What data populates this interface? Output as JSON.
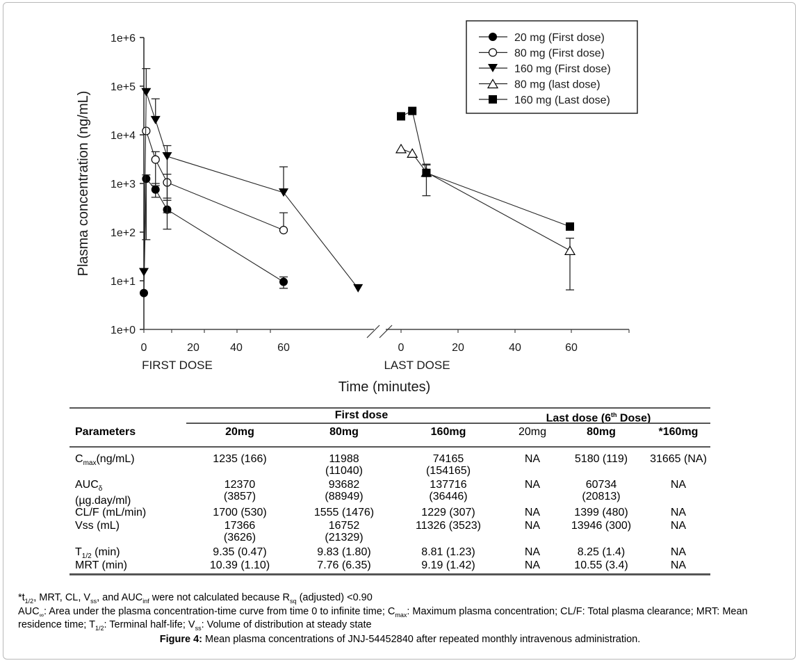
{
  "chart_data": {
    "type": "line",
    "yscale": "log",
    "ylabel": "Plasma concentration (ng/mL)",
    "xlabel": "Time (minutes)",
    "ylim": [
      1,
      1000000
    ],
    "yticks": [
      "1e+0",
      "1e+1",
      "1e+2",
      "1e+3",
      "1e+4",
      "1e+5",
      "1e+6"
    ],
    "grid": false,
    "axis_break": true,
    "segments": [
      {
        "label": "FIRST DOSE",
        "xlim": [
          0,
          85
        ],
        "xticks": [
          "0",
          "20",
          "40",
          "60"
        ]
      },
      {
        "label": "LAST DOSE",
        "xlim": [
          0,
          80
        ],
        "xticks": [
          "0",
          "20",
          "40",
          "60"
        ]
      }
    ],
    "legend_position": "top-right",
    "series": [
      {
        "name": "20 mg (First dose)",
        "marker": "filled-circle",
        "segment": "first",
        "x": [
          0,
          1,
          5,
          10,
          60
        ],
        "y": [
          5.6,
          1250,
          750,
          290,
          9.5
        ],
        "err_upper": [
          null,
          1500,
          1000,
          450,
          12
        ],
        "err_lower": [
          null,
          70,
          520,
          115,
          7
        ]
      },
      {
        "name": "80 mg (First dose)",
        "marker": "open-circle",
        "segment": "first",
        "x": [
          1,
          5,
          10,
          60
        ],
        "y": [
          12000,
          3100,
          1050,
          110
        ],
        "err_upper": [
          null,
          4500,
          1550,
          250
        ],
        "err_lower": [
          null,
          900,
          500,
          null
        ]
      },
      {
        "name": "160 mg (First dose)",
        "marker": "filled-triangle-down",
        "segment": "first",
        "x": [
          0,
          1,
          5,
          10,
          60,
          92
        ],
        "y": [
          15,
          75000,
          20000,
          3600,
          650,
          7
        ],
        "err_upper": [
          null,
          230000,
          55000,
          6000,
          2200,
          null
        ],
        "err_lower": [
          null,
          null,
          null,
          250,
          null,
          null
        ]
      },
      {
        "name": "80 mg (last dose)",
        "marker": "open-triangle-up",
        "segment": "last",
        "x": [
          0,
          4,
          9,
          60
        ],
        "y": [
          5200,
          4200,
          1700,
          42
        ],
        "err_upper": [
          null,
          null,
          2400,
          75
        ],
        "err_lower": [
          null,
          null,
          null,
          6.5
        ]
      },
      {
        "name": "160 mg (Last dose)",
        "marker": "filled-square",
        "segment": "last",
        "x": [
          0,
          4,
          9,
          60
        ],
        "y": [
          24000,
          31000,
          1650,
          130
        ],
        "err_upper": [
          null,
          null,
          2500,
          null
        ],
        "err_lower": [
          null,
          null,
          560,
          null
        ]
      }
    ]
  },
  "table": {
    "group_headers": {
      "first": "First dose",
      "last_prefix": "Last dose (6",
      "last_sup": "th",
      "last_suffix": " Dose)"
    },
    "col_headers": [
      "Parameters",
      "20mg",
      "80mg",
      "160mg",
      "20mg",
      "80mg",
      "*160mg"
    ],
    "rows": [
      {
        "param": "C",
        "param_sub": "max",
        "param_suffix": "(ng/mL)",
        "values": [
          "1235 (166)",
          "11988\n(11040)",
          "74165\n(154165)",
          "NA",
          "5180 (119)",
          "31665 (NA)"
        ]
      },
      {
        "param": "AUC",
        "param_sub": "δ",
        "param_suffix": "",
        "param_line2": "(µg.day/ml)",
        "values": [
          "12370\n(3857)",
          "93682\n(88949)",
          "137716\n(36446)",
          "NA",
          "60734\n(20813)",
          "NA"
        ]
      },
      {
        "param": "CL/F (mL/min)",
        "values": [
          "1700 (530)",
          "1555 (1476)",
          "1229 (307)",
          "NA",
          "1399 (480)",
          "NA"
        ]
      },
      {
        "param": "Vss (mL)",
        "values": [
          "17366\n(3626)",
          "16752\n(21329)",
          "11326 (3523)",
          "NA",
          "13946 (300)",
          "NA"
        ]
      },
      {
        "param": "T",
        "param_sub": "1/2",
        "param_suffix": " (min)",
        "values": [
          "9.35 (0.47)",
          "9.83 (1.80)",
          "8.81 (1.23)",
          "NA",
          "8.25 (1.4)",
          "NA"
        ]
      },
      {
        "param": "MRT (min)",
        "values": [
          "10.39 (1.10)",
          "7.76 (6.35)",
          "9.19 (1.42)",
          "NA",
          "10.55 (3.4)",
          "NA"
        ]
      }
    ]
  },
  "footnotes": {
    "line1": {
      "a": "*t",
      "a_sub": "1/2",
      "b": ", MRT, CL, V",
      "b_sub": "ss",
      "c": ", and AUC",
      "c_sub": "inf",
      "d": " were not calculated because R",
      "d_sub": "sq",
      "e": " (adjusted) <0.90"
    },
    "line2": {
      "a": "AUC",
      "a_sub": "∞",
      "b": ": Area under the plasma concentration-time curve from time 0 to infinite time; C",
      "b_sub": "max",
      "c": ": Maximum plasma concentration; CL/F: Total plasma clearance; MRT: Mean"
    },
    "line3": {
      "a": "residence time; T",
      "a_sub": "1/2",
      "b": ": Terminal half-life; V",
      "b_sub": "ss",
      "c": ": Volume of distribution at steady state"
    }
  },
  "caption": {
    "label": "Figure 4:",
    "text": " Mean plasma concentrations of JNJ-54452840 after repeated monthly intravenous administration."
  }
}
